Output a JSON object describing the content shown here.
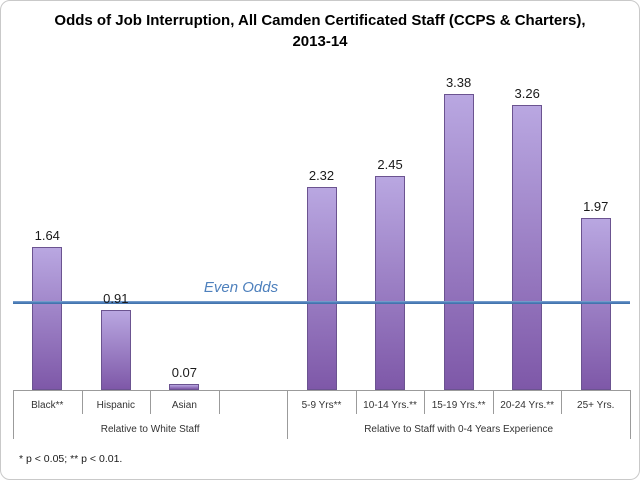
{
  "page": {
    "footnote": "* p < 0.05; ** p < 0.01."
  },
  "chart_data": {
    "type": "bar",
    "title": "Odds of Job Interruption, All Camden Certificated Staff (CCPS & Charters), 2013-14",
    "xlabel": "",
    "ylabel": "",
    "ylim": [
      0,
      3.76
    ],
    "grid": false,
    "legend": false,
    "groups": [
      {
        "label": "Relative to White Staff",
        "categories": [
          "Black**",
          "Hispanic",
          "Asian",
          ""
        ],
        "values": [
          1.64,
          0.91,
          0.07,
          null
        ]
      },
      {
        "label": "Relative to Staff with 0-4 Years Experience",
        "categories": [
          "5-9 Yrs**",
          "10-14 Yrs.**",
          "15-19 Yrs.**",
          "20-24 Yrs.**",
          "25+ Yrs."
        ],
        "values": [
          2.32,
          2.45,
          3.38,
          3.26,
          1.97
        ]
      }
    ],
    "reference_line": {
      "value": 1.0,
      "label": "Even Odds"
    },
    "colors": {
      "bar_fill_top": "#b9a7e1",
      "bar_fill_bottom": "#7e58a8",
      "bar_border": "#6b5390",
      "reference_line": "#4f81bd",
      "axis": "#9b9b9b",
      "value_text": "#1a1a1a",
      "reference_text": "#4f81bd"
    },
    "footnote": "* p < 0.05; ** p < 0.01."
  }
}
